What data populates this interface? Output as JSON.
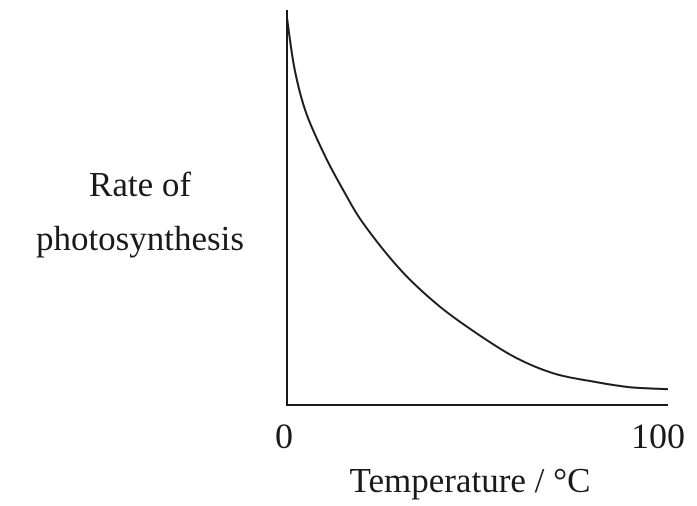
{
  "chart_data": {
    "type": "line",
    "title": "",
    "xlabel": "Temperature / °C",
    "ylabel_lines": [
      "Rate of",
      "photosynthesis"
    ],
    "x_ticks": [
      "0",
      "100"
    ],
    "xlim": [
      0,
      100
    ],
    "ylim": [
      0,
      1
    ],
    "grid": false,
    "legend": "none",
    "line_color": "#1a1a1a",
    "series": [
      {
        "x": [
          0,
          2,
          5,
          10,
          15,
          20,
          30,
          40,
          50,
          60,
          70,
          80,
          90,
          100
        ],
        "values": [
          0.98,
          0.85,
          0.74,
          0.63,
          0.54,
          0.46,
          0.34,
          0.25,
          0.18,
          0.12,
          0.08,
          0.06,
          0.045,
          0.04
        ]
      }
    ]
  }
}
